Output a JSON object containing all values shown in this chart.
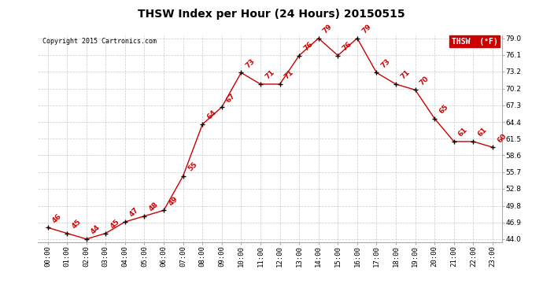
{
  "title": "THSW Index per Hour (24 Hours) 20150515",
  "copyright": "Copyright 2015 Cartronics.com",
  "legend_label": "THSW  (°F)",
  "hours": [
    "00:00",
    "01:00",
    "02:00",
    "03:00",
    "04:00",
    "05:00",
    "06:00",
    "07:00",
    "08:00",
    "09:00",
    "10:00",
    "11:00",
    "12:00",
    "13:00",
    "14:00",
    "15:00",
    "16:00",
    "17:00",
    "18:00",
    "19:00",
    "20:00",
    "21:00",
    "22:00",
    "23:00"
  ],
  "values": [
    46,
    45,
    44,
    45,
    47,
    48,
    49,
    55,
    64,
    67,
    73,
    71,
    71,
    76,
    79,
    76,
    79,
    73,
    71,
    70,
    65,
    61,
    61,
    60
  ],
  "line_color": "#cc0000",
  "marker_color": "#000000",
  "background_color": "#ffffff",
  "grid_color": "#bbbbbb",
  "ylim_min": 44.0,
  "ylim_max": 79.0,
  "yticks": [
    44.0,
    46.9,
    49.8,
    52.8,
    55.7,
    58.6,
    61.5,
    64.4,
    67.3,
    70.2,
    73.2,
    76.1,
    79.0
  ],
  "title_fontsize": 10,
  "label_fontsize": 6.5,
  "annotation_fontsize": 6.5,
  "copyright_fontsize": 6,
  "legend_bg_color": "#cc0000",
  "legend_text_color": "#ffffff"
}
